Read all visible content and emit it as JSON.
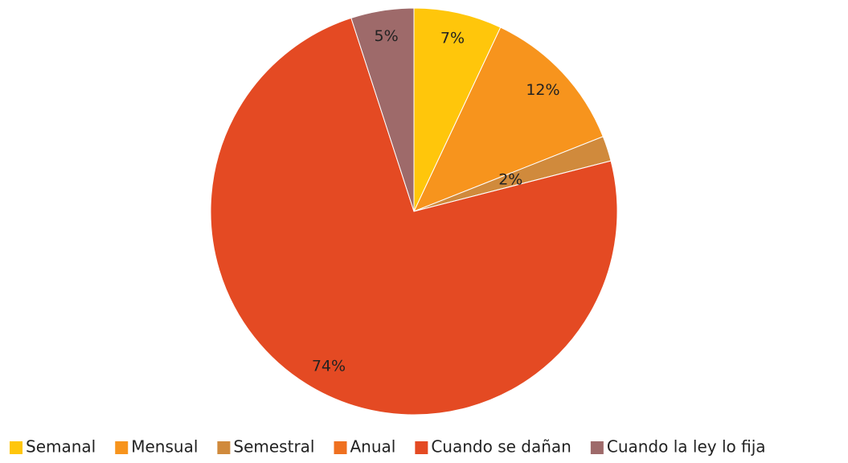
{
  "chart_data": {
    "type": "pie",
    "categories": [
      "Semanal",
      "Mensual",
      "Semestral",
      "Anual",
      "Cuando se dañan",
      "Cuando la ley lo fija"
    ],
    "values": [
      7,
      12,
      2,
      0,
      74,
      5
    ],
    "value_labels": [
      "7%",
      "12%",
      "2%",
      null,
      "74%",
      "5%"
    ],
    "colors": [
      "#FFC60B",
      "#F7941D",
      "#D08A3C",
      "#EF7020",
      "#E44A23",
      "#9E6A6A"
    ],
    "legend": "bottom"
  }
}
